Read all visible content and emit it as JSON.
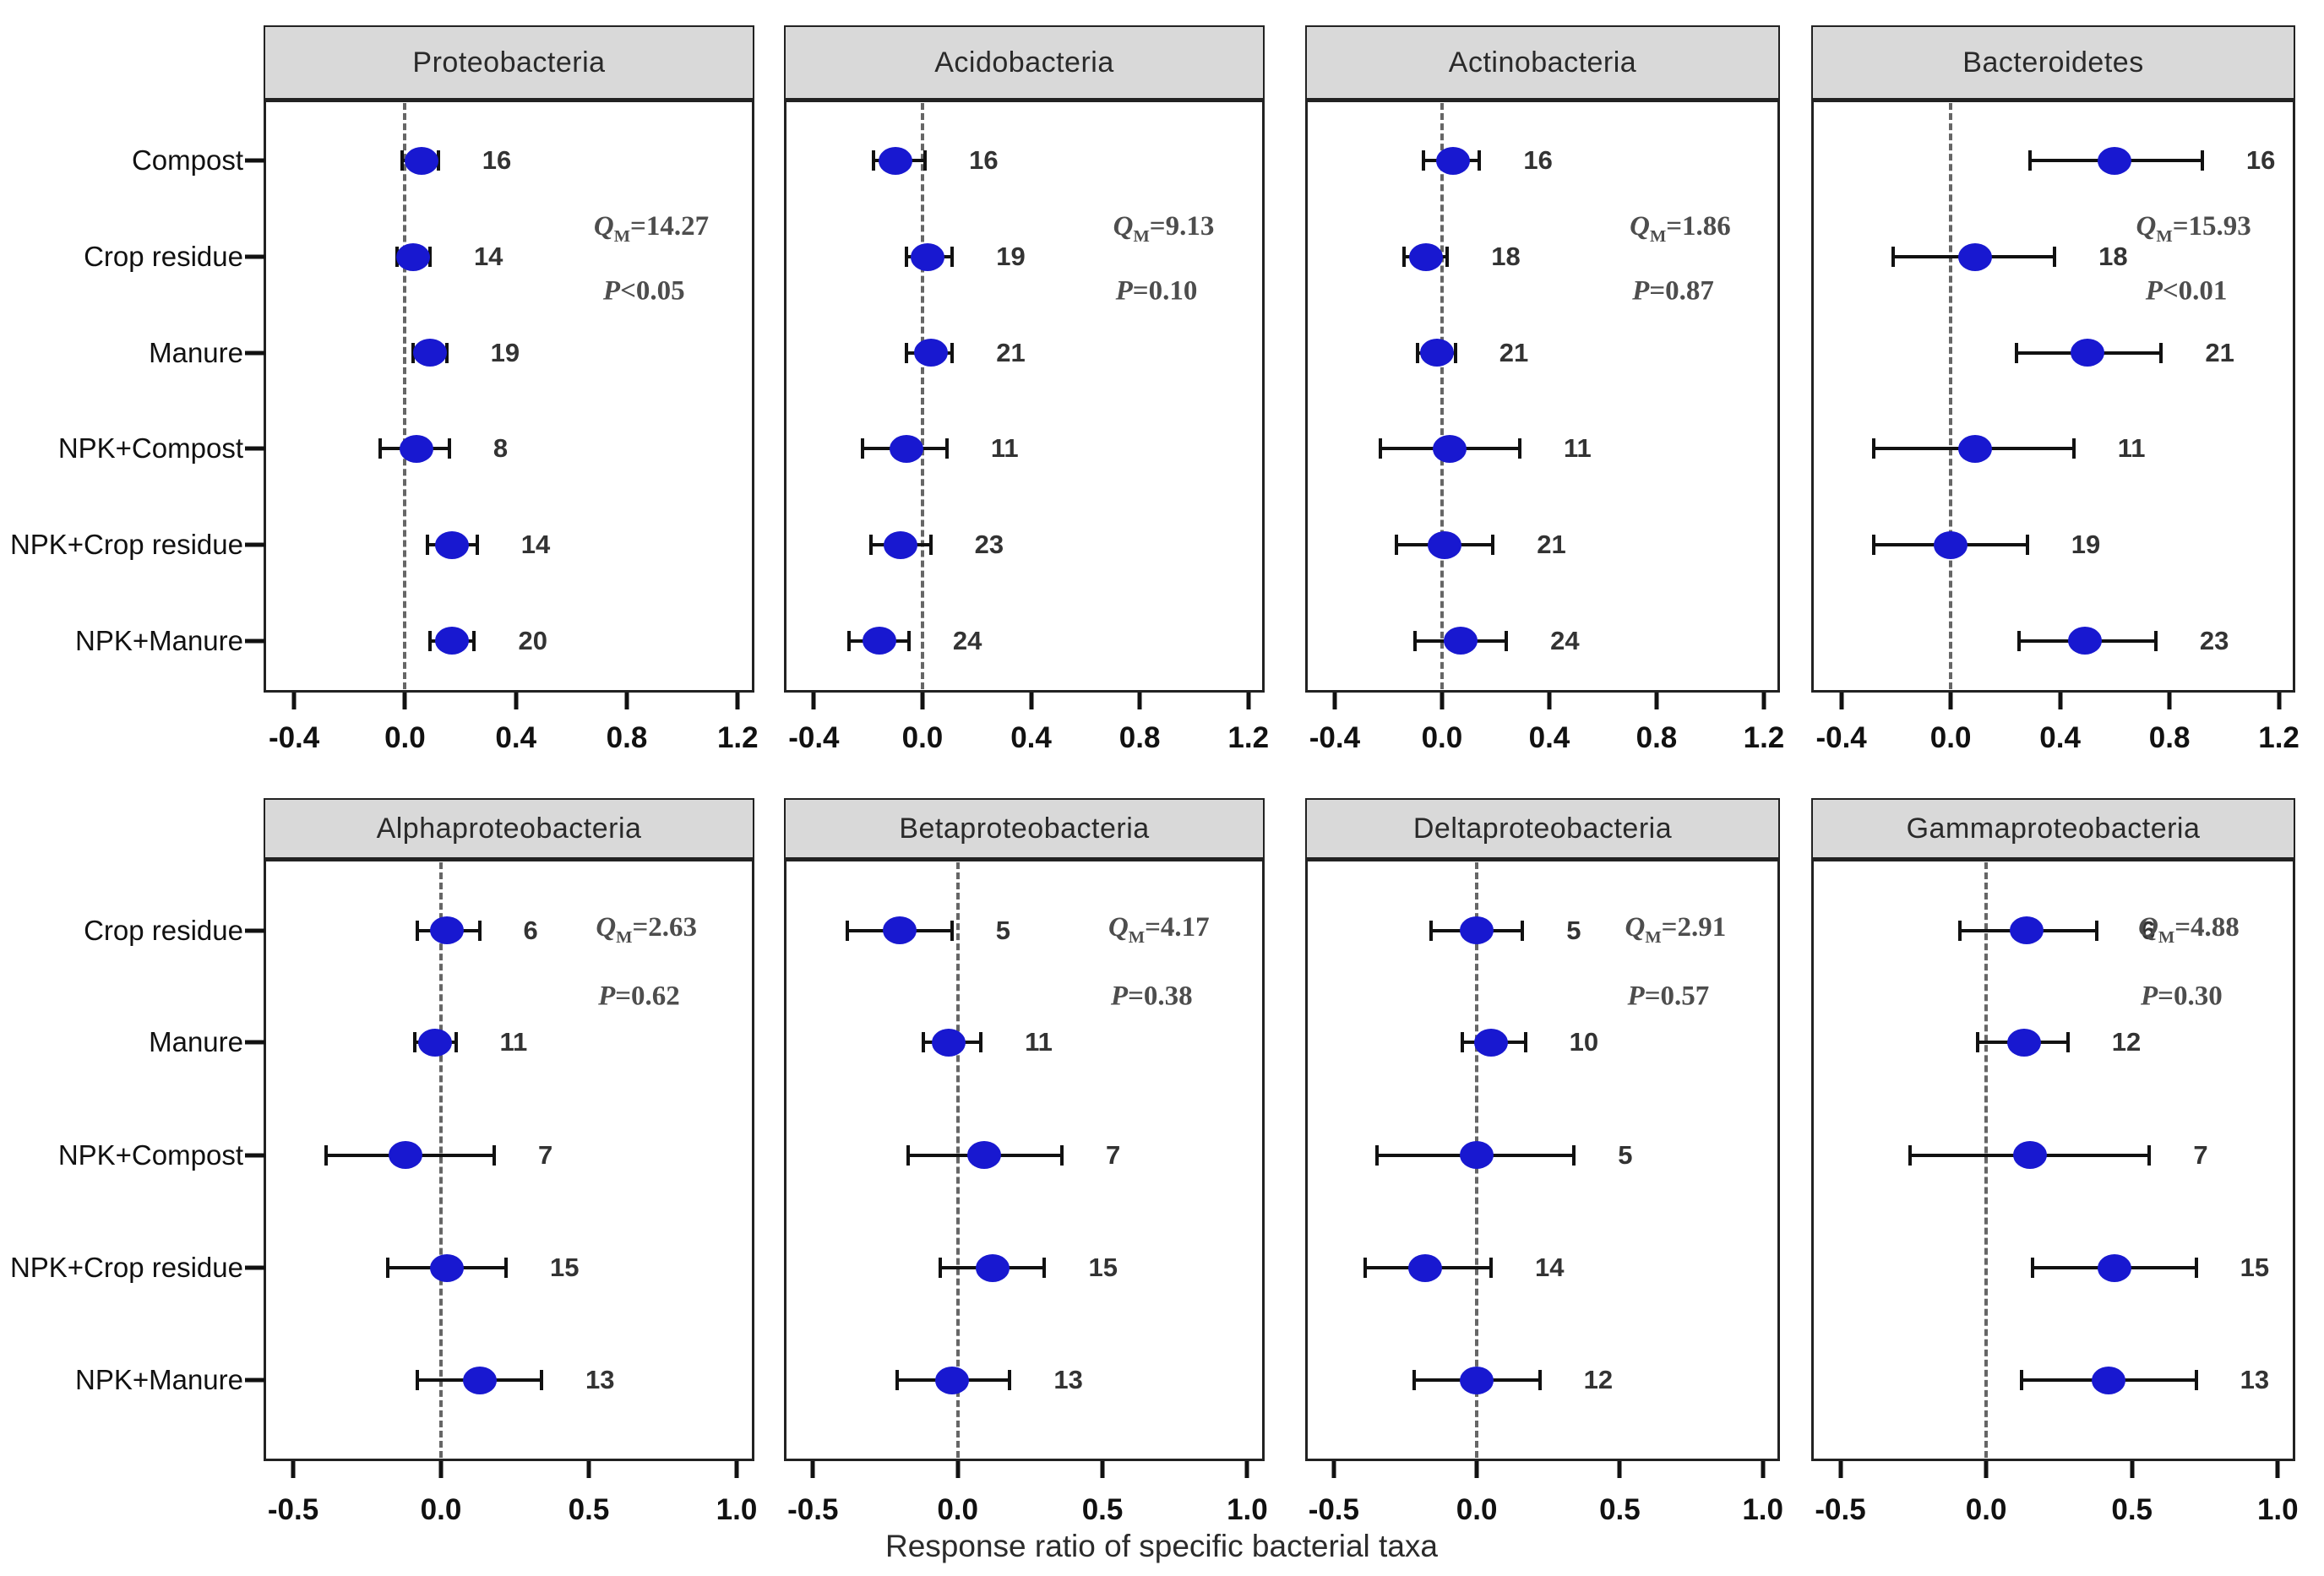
{
  "figure": {
    "colors": {
      "dot": "#1818d0",
      "header_bg": "#d9d9d9",
      "border": "#222222",
      "errorbar": "#111111",
      "zero_line": "#666666",
      "annotation": "#4d4d4d"
    }
  },
  "chart_data": {
    "type": "scatter",
    "subtype": "forest-plot",
    "xlabel": "Response ratio of specific bacterial taxa",
    "stat_labels": {
      "qm_prefix": "Q",
      "qm_sub": "M",
      "p_prefix": "P"
    },
    "legend": "none",
    "grid": false,
    "rows": [
      {
        "categories": [
          "Compost",
          "Crop residue",
          "Manure",
          "NPK+Compost",
          "NPK+Crop residue",
          "NPK+Manure"
        ],
        "xticks": [
          "-0.4",
          "0.0",
          "0.4",
          "0.8",
          "1.2"
        ],
        "xtick_values": [
          -0.4,
          0.0,
          0.4,
          0.8,
          1.2
        ],
        "xlim": [
          -0.51,
          1.26
        ],
        "panels": [
          {
            "title": "Proteobacteria",
            "qm": "=14.27",
            "p": "<0.05",
            "points": [
              {
                "category": "Compost",
                "est": 0.06,
                "lo": -0.01,
                "hi": 0.12,
                "n": 16
              },
              {
                "category": "Crop residue",
                "est": 0.03,
                "lo": -0.03,
                "hi": 0.09,
                "n": 14
              },
              {
                "category": "Manure",
                "est": 0.09,
                "lo": 0.03,
                "hi": 0.15,
                "n": 19
              },
              {
                "category": "NPK+Compost",
                "est": 0.04,
                "lo": -0.09,
                "hi": 0.16,
                "n": 8
              },
              {
                "category": "NPK+Crop residue",
                "est": 0.17,
                "lo": 0.08,
                "hi": 0.26,
                "n": 14
              },
              {
                "category": "NPK+Manure",
                "est": 0.17,
                "lo": 0.09,
                "hi": 0.25,
                "n": 20
              }
            ]
          },
          {
            "title": "Acidobacteria",
            "qm": "=9.13",
            "p": "=0.10",
            "points": [
              {
                "category": "Compost",
                "est": -0.1,
                "lo": -0.18,
                "hi": 0.01,
                "n": 16
              },
              {
                "category": "Crop residue",
                "est": 0.02,
                "lo": -0.06,
                "hi": 0.11,
                "n": 19
              },
              {
                "category": "Manure",
                "est": 0.03,
                "lo": -0.06,
                "hi": 0.11,
                "n": 21
              },
              {
                "category": "NPK+Compost",
                "est": -0.06,
                "lo": -0.22,
                "hi": 0.09,
                "n": 11
              },
              {
                "category": "NPK+Crop residue",
                "est": -0.08,
                "lo": -0.19,
                "hi": 0.03,
                "n": 23
              },
              {
                "category": "NPK+Manure",
                "est": -0.16,
                "lo": -0.27,
                "hi": -0.05,
                "n": 24
              }
            ]
          },
          {
            "title": "Actinobacteria",
            "qm": "=1.86",
            "p": "=0.87",
            "points": [
              {
                "category": "Compost",
                "est": 0.04,
                "lo": -0.07,
                "hi": 0.14,
                "n": 16
              },
              {
                "category": "Crop residue",
                "est": -0.06,
                "lo": -0.14,
                "hi": 0.02,
                "n": 18
              },
              {
                "category": "Manure",
                "est": -0.02,
                "lo": -0.09,
                "hi": 0.05,
                "n": 21
              },
              {
                "category": "NPK+Compost",
                "est": 0.03,
                "lo": -0.23,
                "hi": 0.29,
                "n": 11
              },
              {
                "category": "NPK+Crop residue",
                "est": 0.01,
                "lo": -0.17,
                "hi": 0.19,
                "n": 21
              },
              {
                "category": "NPK+Manure",
                "est": 0.07,
                "lo": -0.1,
                "hi": 0.24,
                "n": 24
              }
            ]
          },
          {
            "title": "Bacteroidetes",
            "qm": "=15.93",
            "p": "<0.01",
            "points": [
              {
                "category": "Compost",
                "est": 0.6,
                "lo": 0.29,
                "hi": 0.92,
                "n": 16
              },
              {
                "category": "Crop residue",
                "est": 0.09,
                "lo": -0.21,
                "hi": 0.38,
                "n": 18
              },
              {
                "category": "Manure",
                "est": 0.5,
                "lo": 0.24,
                "hi": 0.77,
                "n": 21
              },
              {
                "category": "NPK+Compost",
                "est": 0.09,
                "lo": -0.28,
                "hi": 0.45,
                "n": 11
              },
              {
                "category": "NPK+Crop residue",
                "est": 0.0,
                "lo": -0.28,
                "hi": 0.28,
                "n": 19
              },
              {
                "category": "NPK+Manure",
                "est": 0.49,
                "lo": 0.25,
                "hi": 0.75,
                "n": 23
              }
            ]
          }
        ]
      },
      {
        "categories": [
          "Crop residue",
          "Manure",
          "NPK+Compost",
          "NPK+Crop residue",
          "NPK+Manure"
        ],
        "xticks": [
          "-0.5",
          "0.0",
          "0.5",
          "1.0"
        ],
        "xtick_values": [
          -0.5,
          0.0,
          0.5,
          1.0
        ],
        "xlim": [
          -0.6,
          1.06
        ],
        "panels": [
          {
            "title": "Alphaproteobacteria",
            "qm": "=2.63",
            "p": "=0.62",
            "points": [
              {
                "category": "Crop residue",
                "est": 0.02,
                "lo": -0.08,
                "hi": 0.13,
                "n": 6
              },
              {
                "category": "Manure",
                "est": -0.02,
                "lo": -0.09,
                "hi": 0.05,
                "n": 11
              },
              {
                "category": "NPK+Compost",
                "est": -0.12,
                "lo": -0.39,
                "hi": 0.18,
                "n": 7
              },
              {
                "category": "NPK+Crop residue",
                "est": 0.02,
                "lo": -0.18,
                "hi": 0.22,
                "n": 15
              },
              {
                "category": "NPK+Manure",
                "est": 0.13,
                "lo": -0.08,
                "hi": 0.34,
                "n": 13
              }
            ]
          },
          {
            "title": "Betaproteobacteria",
            "qm": "=4.17",
            "p": "=0.38",
            "points": [
              {
                "category": "Crop residue",
                "est": -0.2,
                "lo": -0.38,
                "hi": -0.02,
                "n": 5
              },
              {
                "category": "Manure",
                "est": -0.03,
                "lo": -0.12,
                "hi": 0.08,
                "n": 11
              },
              {
                "category": "NPK+Compost",
                "est": 0.09,
                "lo": -0.17,
                "hi": 0.36,
                "n": 7
              },
              {
                "category": "NPK+Crop residue",
                "est": 0.12,
                "lo": -0.06,
                "hi": 0.3,
                "n": 15
              },
              {
                "category": "NPK+Manure",
                "est": -0.02,
                "lo": -0.21,
                "hi": 0.18,
                "n": 13
              }
            ]
          },
          {
            "title": "Deltaproteobacteria",
            "qm": "=2.91",
            "p": "=0.57",
            "points": [
              {
                "category": "Crop residue",
                "est": 0.0,
                "lo": -0.16,
                "hi": 0.16,
                "n": 5
              },
              {
                "category": "Manure",
                "est": 0.05,
                "lo": -0.05,
                "hi": 0.17,
                "n": 10
              },
              {
                "category": "NPK+Compost",
                "est": 0.0,
                "lo": -0.35,
                "hi": 0.34,
                "n": 5
              },
              {
                "category": "NPK+Crop residue",
                "est": -0.18,
                "lo": -0.39,
                "hi": 0.05,
                "n": 14
              },
              {
                "category": "NPK+Manure",
                "est": 0.0,
                "lo": -0.22,
                "hi": 0.22,
                "n": 12
              }
            ]
          },
          {
            "title": "Gammaproteobacteria",
            "qm": "=4.88",
            "p": "=0.30",
            "points": [
              {
                "category": "Crop residue",
                "est": 0.14,
                "lo": -0.09,
                "hi": 0.38,
                "n": 6
              },
              {
                "category": "Manure",
                "est": 0.13,
                "lo": -0.03,
                "hi": 0.28,
                "n": 12
              },
              {
                "category": "NPK+Compost",
                "est": 0.15,
                "lo": -0.26,
                "hi": 0.56,
                "n": 7
              },
              {
                "category": "NPK+Crop residue",
                "est": 0.44,
                "lo": 0.16,
                "hi": 0.72,
                "n": 15
              },
              {
                "category": "NPK+Manure",
                "est": 0.42,
                "lo": 0.12,
                "hi": 0.72,
                "n": 13
              }
            ]
          }
        ]
      }
    ]
  }
}
